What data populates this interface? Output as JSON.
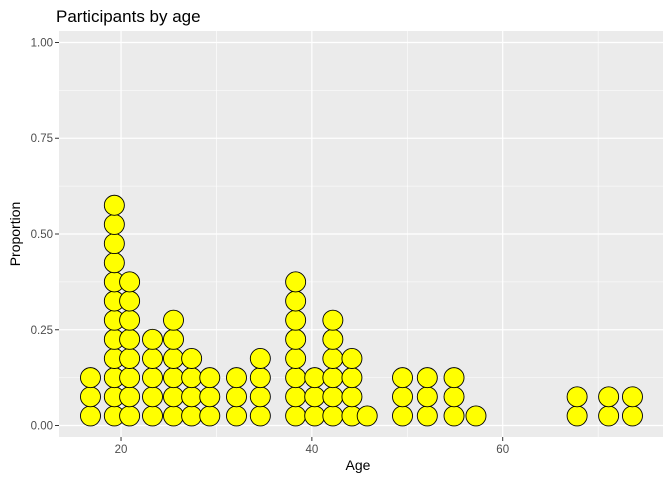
{
  "chart_data": {
    "type": "dotplot",
    "title": "Participants by age",
    "xlabel": "Age",
    "ylabel": "Proportion",
    "xlim": [
      13.5,
      76.8
    ],
    "ylim": [
      -0.03,
      1.03
    ],
    "x_ticks": [
      {
        "value": 20,
        "label": "20"
      },
      {
        "value": 40,
        "label": "40"
      },
      {
        "value": 60,
        "label": "60"
      }
    ],
    "y_ticks": [
      {
        "value": 0.0,
        "label": "0.00"
      },
      {
        "value": 0.25,
        "label": "0.25"
      },
      {
        "value": 0.5,
        "label": "0.50"
      },
      {
        "value": 0.75,
        "label": "0.75"
      },
      {
        "value": 1.0,
        "label": "1.00"
      }
    ],
    "grid": true,
    "panel_background": "#ebebeb",
    "grid_color": "#ffffff",
    "dot_fill": "#ffff00",
    "dot_stroke": "#000000",
    "dot_binwidth": 2.1,
    "stack_step": 0.05,
    "stacks": [
      {
        "x": 16.8,
        "count": 3
      },
      {
        "x": 19.3,
        "count": 12
      },
      {
        "x": 20.9,
        "count": 8
      },
      {
        "x": 23.3,
        "count": 5
      },
      {
        "x": 25.5,
        "count": 6
      },
      {
        "x": 27.4,
        "count": 4
      },
      {
        "x": 29.3,
        "count": 3
      },
      {
        "x": 32.1,
        "count": 3
      },
      {
        "x": 34.6,
        "count": 4
      },
      {
        "x": 38.3,
        "count": 8
      },
      {
        "x": 40.3,
        "count": 3
      },
      {
        "x": 42.2,
        "count": 6
      },
      {
        "x": 44.2,
        "count": 4
      },
      {
        "x": 45.8,
        "count": 1
      },
      {
        "x": 49.5,
        "count": 3
      },
      {
        "x": 52.1,
        "count": 3
      },
      {
        "x": 54.9,
        "count": 3
      },
      {
        "x": 57.2,
        "count": 1
      },
      {
        "x": 67.8,
        "count": 2
      },
      {
        "x": 71.1,
        "count": 2
      },
      {
        "x": 73.6,
        "count": 2
      }
    ]
  }
}
